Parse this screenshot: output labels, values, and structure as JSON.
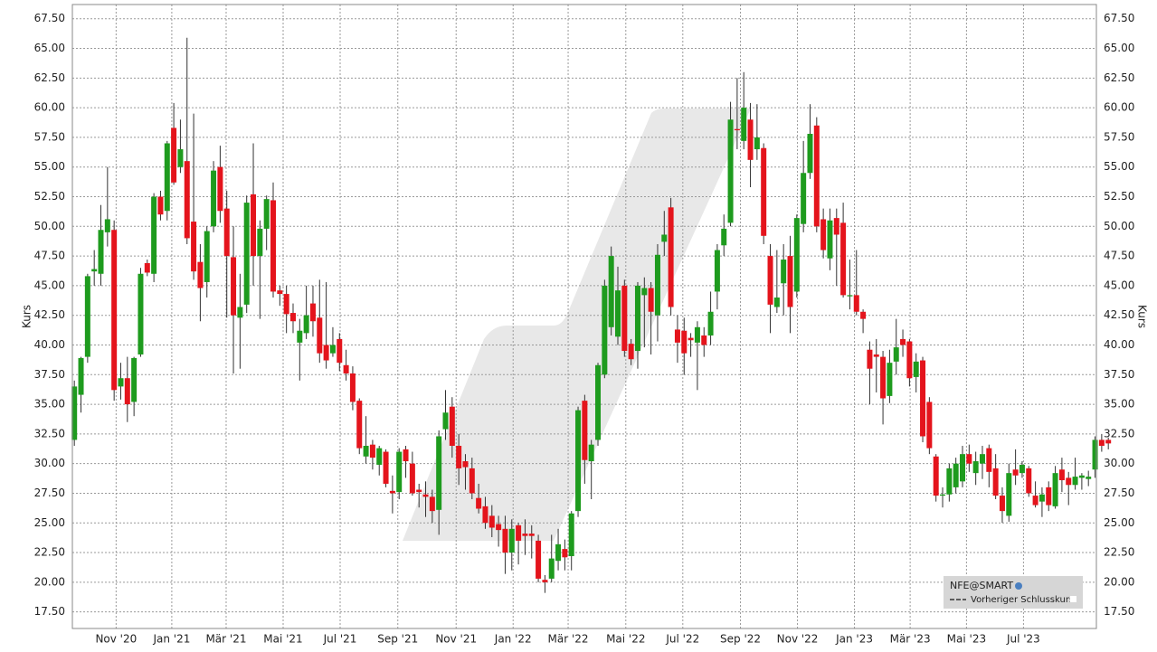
{
  "chart_data": {
    "type": "candlestick",
    "y_label": "Kurs",
    "up_color": "#1e9b1e",
    "down_color": "#e4141c",
    "grid": true,
    "ylim": [
      16.1,
      68.7
    ],
    "xlim": [
      -0.3,
      154.2
    ],
    "yticks": [
      {
        "value": 17.5,
        "label": "17.50"
      },
      {
        "value": 20,
        "label": "20.00"
      },
      {
        "value": 22.5,
        "label": "22.50"
      },
      {
        "value": 25,
        "label": "25.00"
      },
      {
        "value": 27.5,
        "label": "27.50"
      },
      {
        "value": 30,
        "label": "30.00"
      },
      {
        "value": 32.5,
        "label": "32.50"
      },
      {
        "value": 35,
        "label": "35.00"
      },
      {
        "value": 37.5,
        "label": "37.50"
      },
      {
        "value": 40,
        "label": "40.00"
      },
      {
        "value": 42.5,
        "label": "42.50"
      },
      {
        "value": 45,
        "label": "45.00"
      },
      {
        "value": 47.5,
        "label": "47.50"
      },
      {
        "value": 50,
        "label": "50.00"
      },
      {
        "value": 52.5,
        "label": "52.50"
      },
      {
        "value": 55,
        "label": "55.00"
      },
      {
        "value": 57.5,
        "label": "57.50"
      },
      {
        "value": 60,
        "label": "60.00"
      },
      {
        "value": 62.5,
        "label": "62.50"
      },
      {
        "value": 65,
        "label": "65.00"
      },
      {
        "value": 67.5,
        "label": "67.50"
      }
    ],
    "xticks": [
      {
        "value": 6.3,
        "label": "Nov '20"
      },
      {
        "value": 14.7,
        "label": "Jan '21"
      },
      {
        "value": 22.9,
        "label": "Mär '21"
      },
      {
        "value": 31.5,
        "label": "Mai '21"
      },
      {
        "value": 40.1,
        "label": "Jul '21"
      },
      {
        "value": 48.8,
        "label": "Sep '21"
      },
      {
        "value": 57.6,
        "label": "Nov '21"
      },
      {
        "value": 66.2,
        "label": "Jan '22"
      },
      {
        "value": 74.5,
        "label": "Mär '22"
      },
      {
        "value": 83.2,
        "label": "Mai '22"
      },
      {
        "value": 91.8,
        "label": "Jul '22"
      },
      {
        "value": 100.5,
        "label": "Sep '22"
      },
      {
        "value": 109.1,
        "label": "Nov '22"
      },
      {
        "value": 117.7,
        "label": "Jan '23"
      },
      {
        "value": 126.1,
        "label": "Mär '23"
      },
      {
        "value": 134.6,
        "label": "Mai '23"
      },
      {
        "value": 143.2,
        "label": "Jul '23"
      }
    ],
    "legend": {
      "symbol": "NFE@SMART",
      "previous_close": "Vorheriger Schlusskurs"
    },
    "ohlc": [
      [
        32,
        37,
        31.5,
        36.5
      ],
      [
        35.8,
        39,
        34.3,
        38.9
      ],
      [
        39,
        46,
        38.5,
        45.8
      ],
      [
        46.2,
        48,
        45,
        46.4
      ],
      [
        46,
        51.8,
        45,
        49.7
      ],
      [
        49.5,
        55,
        48.3,
        50.6
      ],
      [
        49.7,
        50.5,
        35.3,
        36.2
      ],
      [
        36.5,
        38.5,
        35.4,
        37.2
      ],
      [
        37.2,
        39,
        33.5,
        35
      ],
      [
        35.2,
        39,
        34,
        38.9
      ],
      [
        39.2,
        46.5,
        39,
        46
      ],
      [
        46.9,
        47.2,
        45.8,
        46.1
      ],
      [
        46,
        52.8,
        45.3,
        52.5
      ],
      [
        52.5,
        53,
        50.5,
        51
      ],
      [
        51.3,
        57.2,
        50.5,
        57
      ],
      [
        58.3,
        60.4,
        53.5,
        53.7
      ],
      [
        55,
        59,
        54.5,
        56.5
      ],
      [
        55.5,
        65.9,
        48.5,
        49
      ],
      [
        50.4,
        59.5,
        45.5,
        46.2
      ],
      [
        47,
        48.5,
        42,
        44.8
      ],
      [
        45.3,
        50,
        44,
        49.6
      ],
      [
        50,
        55.5,
        49.5,
        54.7
      ],
      [
        55,
        56.8,
        50.3,
        51.3
      ],
      [
        51.5,
        53,
        42.3,
        47.5
      ],
      [
        47.4,
        50,
        37.6,
        42.5
      ],
      [
        42.3,
        46,
        38,
        43.2
      ],
      [
        43.4,
        52.6,
        42.7,
        52
      ],
      [
        52.7,
        57,
        45,
        47.5
      ],
      [
        47.5,
        50.5,
        42.2,
        49.8
      ],
      [
        49.8,
        52.6,
        48,
        52.3
      ],
      [
        52.2,
        53.7,
        44,
        44.5
      ],
      [
        44.6,
        45,
        43.3,
        44.3
      ],
      [
        44.3,
        45,
        41,
        42.6
      ],
      [
        42.7,
        43.5,
        41,
        42
      ],
      [
        40.2,
        42.2,
        37,
        41.2
      ],
      [
        41,
        45,
        40.5,
        42.5
      ],
      [
        43.5,
        45,
        40.7,
        42
      ],
      [
        42.3,
        45.5,
        38.5,
        39.3
      ],
      [
        40,
        45.3,
        38,
        38.7
      ],
      [
        39.3,
        41.5,
        39,
        40
      ],
      [
        40.5,
        41,
        37.8,
        38.5
      ],
      [
        38.3,
        39.6,
        37,
        37.6
      ],
      [
        37.6,
        38.2,
        34.5,
        35.2
      ],
      [
        35.3,
        35.5,
        30.8,
        31.3
      ],
      [
        30.6,
        34,
        30,
        31.5
      ],
      [
        31.6,
        32,
        29.5,
        30.5
      ],
      [
        29.9,
        31.5,
        29,
        31.3
      ],
      [
        31,
        31.2,
        28,
        28.3
      ],
      [
        27.7,
        29,
        25.8,
        27.5
      ],
      [
        27.6,
        31.3,
        27,
        31
      ],
      [
        31.2,
        31.5,
        28.8,
        30.2
      ],
      [
        30,
        31,
        27.3,
        27.5
      ],
      [
        27.8,
        28.3,
        26.3,
        27.6
      ],
      [
        27.4,
        28.5,
        25.5,
        27.2
      ],
      [
        27.2,
        27.8,
        25,
        26
      ],
      [
        26.1,
        32.8,
        24,
        32.3
      ],
      [
        32.9,
        36.2,
        32,
        34.3
      ],
      [
        34.8,
        35.6,
        30.5,
        31.5
      ],
      [
        31.5,
        32.5,
        28.2,
        29.6
      ],
      [
        30.2,
        30.8,
        27.8,
        29.7
      ],
      [
        29.6,
        30.5,
        27,
        27.5
      ],
      [
        27.1,
        28.3,
        25.8,
        26.2
      ],
      [
        26.4,
        27.2,
        24.5,
        25
      ],
      [
        25.6,
        26.5,
        23.8,
        24.6
      ],
      [
        24.9,
        25.6,
        23,
        24.4
      ],
      [
        24.5,
        25.6,
        20.7,
        22.5
      ],
      [
        22.5,
        25.3,
        21,
        24.5
      ],
      [
        24.8,
        25,
        21.5,
        23.5
      ],
      [
        24.1,
        25.3,
        22.3,
        23.9
      ],
      [
        24.1,
        24.8,
        22,
        23.9
      ],
      [
        23.5,
        24,
        20,
        20.3
      ],
      [
        20.2,
        20.6,
        19.1,
        20
      ],
      [
        20.3,
        24,
        20,
        22
      ],
      [
        21.8,
        24.5,
        21,
        23.2
      ],
      [
        22.8,
        23.6,
        21,
        22.1
      ],
      [
        22.2,
        26,
        21,
        25.8
      ],
      [
        26,
        34.8,
        25.5,
        34.5
      ],
      [
        35.3,
        35.8,
        28.3,
        30.3
      ],
      [
        30.2,
        32,
        27,
        31.6
      ],
      [
        32,
        38.5,
        31.5,
        38.3
      ],
      [
        37.5,
        45.5,
        37.2,
        45
      ],
      [
        41.5,
        48.3,
        40.8,
        47.5
      ],
      [
        40.7,
        46.6,
        40,
        44.6
      ],
      [
        45,
        45.5,
        39,
        39.5
      ],
      [
        40.1,
        40.5,
        38.3,
        38.8
      ],
      [
        39.5,
        45.3,
        38,
        45
      ],
      [
        44.2,
        45.7,
        39.8,
        44.8
      ],
      [
        44.8,
        45.3,
        39.2,
        42.8
      ],
      [
        42.5,
        48.5,
        40.3,
        47.6
      ],
      [
        48.7,
        51.3,
        47.5,
        49.3
      ],
      [
        51.6,
        52.4,
        42.5,
        43.2
      ],
      [
        41.3,
        42.5,
        38.5,
        40.2
      ],
      [
        41.2,
        42.3,
        37.5,
        39.3
      ],
      [
        40.6,
        41,
        39,
        40.4
      ],
      [
        40.2,
        42,
        36.2,
        41.5
      ],
      [
        40.8,
        41.5,
        39,
        40
      ],
      [
        40.8,
        44.5,
        40,
        42.8
      ],
      [
        44.5,
        48.5,
        43,
        48
      ],
      [
        48.4,
        51,
        47.5,
        49.8
      ],
      [
        50.3,
        60.5,
        50,
        59
      ],
      [
        58.2,
        62.5,
        56.5,
        58.1
      ],
      [
        57.2,
        63,
        56.5,
        60
      ],
      [
        59,
        60.4,
        53.3,
        55.6
      ],
      [
        56.5,
        60.3,
        55.6,
        57.5
      ],
      [
        56.6,
        57,
        48.5,
        49.2
      ],
      [
        47.5,
        48.5,
        41,
        43.4
      ],
      [
        43.2,
        48,
        42.7,
        44
      ],
      [
        45.2,
        48.5,
        42.5,
        47.2
      ],
      [
        47.5,
        49.2,
        41,
        43.2
      ],
      [
        44.5,
        51,
        44,
        50.7
      ],
      [
        50.2,
        57.2,
        49.5,
        54.5
      ],
      [
        54.5,
        60.3,
        54,
        57.8
      ],
      [
        58.5,
        59.2,
        49.5,
        50
      ],
      [
        50.6,
        51.5,
        47.3,
        48
      ],
      [
        47.3,
        51.5,
        46.3,
        50.5
      ],
      [
        50.7,
        51.5,
        45,
        49.3
      ],
      [
        50.3,
        52,
        44,
        44.2
      ],
      [
        44.1,
        47.2,
        43,
        44.2
      ],
      [
        44.2,
        48,
        42.5,
        42.8
      ],
      [
        42.8,
        43,
        41,
        42.2
      ],
      [
        39.6,
        40.3,
        35,
        38
      ],
      [
        39.2,
        40.5,
        36,
        39
      ],
      [
        39,
        39.5,
        33.3,
        35.5
      ],
      [
        35.7,
        39.6,
        35.1,
        38.5
      ],
      [
        38.6,
        42.2,
        37.5,
        39.8
      ],
      [
        40.5,
        41.3,
        39,
        40
      ],
      [
        40.3,
        40.5,
        36.5,
        37.2
      ],
      [
        37.3,
        39.3,
        36,
        38.6
      ],
      [
        38.7,
        39,
        31.8,
        32.3
      ],
      [
        35.2,
        35.6,
        30.8,
        31.3
      ],
      [
        30.6,
        30.8,
        26.8,
        27.3
      ],
      [
        27.3,
        28,
        26.3,
        27.4
      ],
      [
        27.4,
        30,
        26.8,
        29.6
      ],
      [
        28,
        30.5,
        27.5,
        30
      ],
      [
        28.5,
        31.5,
        28,
        30.8
      ],
      [
        30.8,
        31.6,
        29.3,
        30
      ],
      [
        29.2,
        31,
        28.2,
        30.2
      ],
      [
        30,
        31.5,
        28.7,
        30.8
      ],
      [
        31.3,
        31.6,
        28,
        29.3
      ],
      [
        29.6,
        30.8,
        27,
        27.3
      ],
      [
        27.3,
        28,
        25,
        26
      ],
      [
        25.6,
        30,
        25.1,
        29.2
      ],
      [
        29.5,
        31.2,
        28.2,
        29
      ],
      [
        29.2,
        30.2,
        28.8,
        29.9
      ],
      [
        29.6,
        29.8,
        27.2,
        27.5
      ],
      [
        27.3,
        28.5,
        26.3,
        26.5
      ],
      [
        26.8,
        28,
        25.5,
        27.4
      ],
      [
        28,
        28.5,
        26,
        26.5
      ],
      [
        26.4,
        29.8,
        26.2,
        29.2
      ],
      [
        29.5,
        30.5,
        27.6,
        28.6
      ],
      [
        28.8,
        29.3,
        26.5,
        28.2
      ],
      [
        28.2,
        30.5,
        27.8,
        28.9
      ],
      [
        28.8,
        29.2,
        27.8,
        29
      ],
      [
        28.7,
        29.4,
        28.1,
        28.9
      ],
      [
        29.5,
        32.3,
        28.8,
        32
      ],
      [
        32,
        32.5,
        31,
        31.5
      ],
      [
        32,
        32.2,
        31.2,
        31.7
      ]
    ]
  }
}
